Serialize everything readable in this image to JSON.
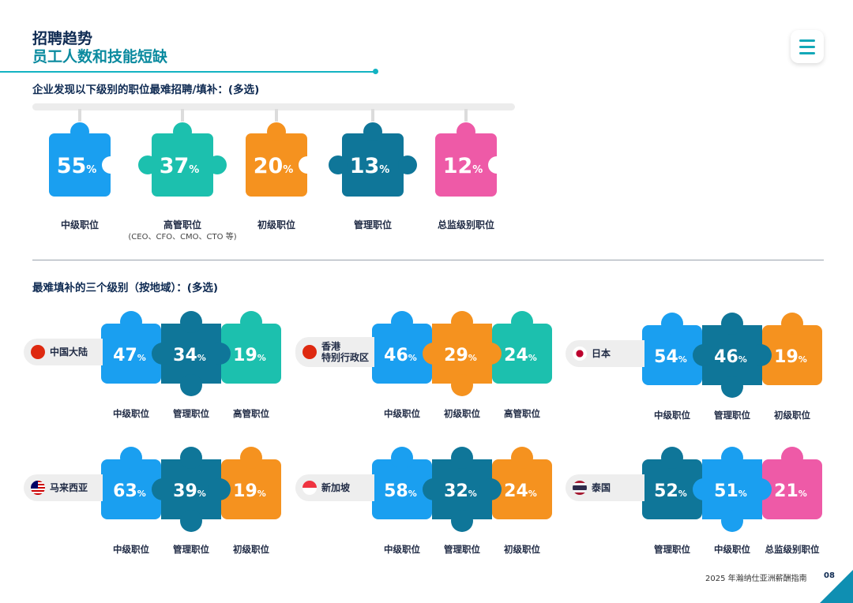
{
  "header": {
    "title": "招聘趋势",
    "subtitle": "员工人数和技能短缺"
  },
  "footer": {
    "text": "2025 年瀚纳仕亚洲薪酬指南",
    "page": "08"
  },
  "colors": {
    "light_blue": "#1a9ff0",
    "dark_blue": "#0f7699",
    "teal": "#1cc0ae",
    "orange": "#f5921f",
    "pink": "#ee5aa7",
    "navy": "#0e2a52"
  },
  "chart_data": [
    {
      "type": "bar",
      "title": "企业发现以下级别的职位最难招聘/填补：(多选)",
      "categories": [
        "中级职位",
        "高管职位",
        "初级职位",
        "管理职位",
        "总监级别职位"
      ],
      "category_notes": [
        "",
        "(CEO、CFO、CMO、CTO 等)",
        "",
        "",
        ""
      ],
      "values": [
        55,
        37,
        20,
        13,
        12
      ],
      "unit": "%",
      "colors": [
        "#1a9ff0",
        "#1cc0ae",
        "#f5921f",
        "#0f7699",
        "#ee5aa7"
      ]
    },
    {
      "type": "bar",
      "title": "最难填补的三个级别（按地域）：(多选)",
      "unit": "%",
      "regions": [
        {
          "name": "中国大陆",
          "flag": "cn",
          "categories": [
            "中级职位",
            "管理职位",
            "高管职位"
          ],
          "values": [
            47,
            34,
            19
          ],
          "colors": [
            "#1a9ff0",
            "#0f7699",
            "#1cc0ae"
          ]
        },
        {
          "name": "香港特别行政区",
          "name_lines": [
            "香港",
            "特别行政区"
          ],
          "flag": "hk",
          "categories": [
            "中级职位",
            "初级职位",
            "高管职位"
          ],
          "values": [
            46,
            29,
            24
          ],
          "colors": [
            "#1a9ff0",
            "#f5921f",
            "#1cc0ae"
          ]
        },
        {
          "name": "日本",
          "flag": "jp",
          "categories": [
            "中级职位",
            "管理职位",
            "初级职位"
          ],
          "values": [
            54,
            46,
            19
          ],
          "colors": [
            "#1a9ff0",
            "#0f7699",
            "#f5921f"
          ]
        },
        {
          "name": "马来西亚",
          "flag": "my",
          "categories": [
            "中级职位",
            "管理职位",
            "初级职位"
          ],
          "values": [
            63,
            39,
            19
          ],
          "colors": [
            "#1a9ff0",
            "#0f7699",
            "#f5921f"
          ]
        },
        {
          "name": "新加坡",
          "flag": "sg",
          "categories": [
            "中级职位",
            "管理职位",
            "初级职位"
          ],
          "values": [
            58,
            32,
            24
          ],
          "colors": [
            "#1a9ff0",
            "#0f7699",
            "#f5921f"
          ]
        },
        {
          "name": "泰国",
          "flag": "th",
          "categories": [
            "管理职位",
            "中级职位",
            "总监级别职位"
          ],
          "values": [
            52,
            51,
            21
          ],
          "colors": [
            "#0f7699",
            "#1a9ff0",
            "#ee5aa7"
          ]
        }
      ]
    }
  ]
}
